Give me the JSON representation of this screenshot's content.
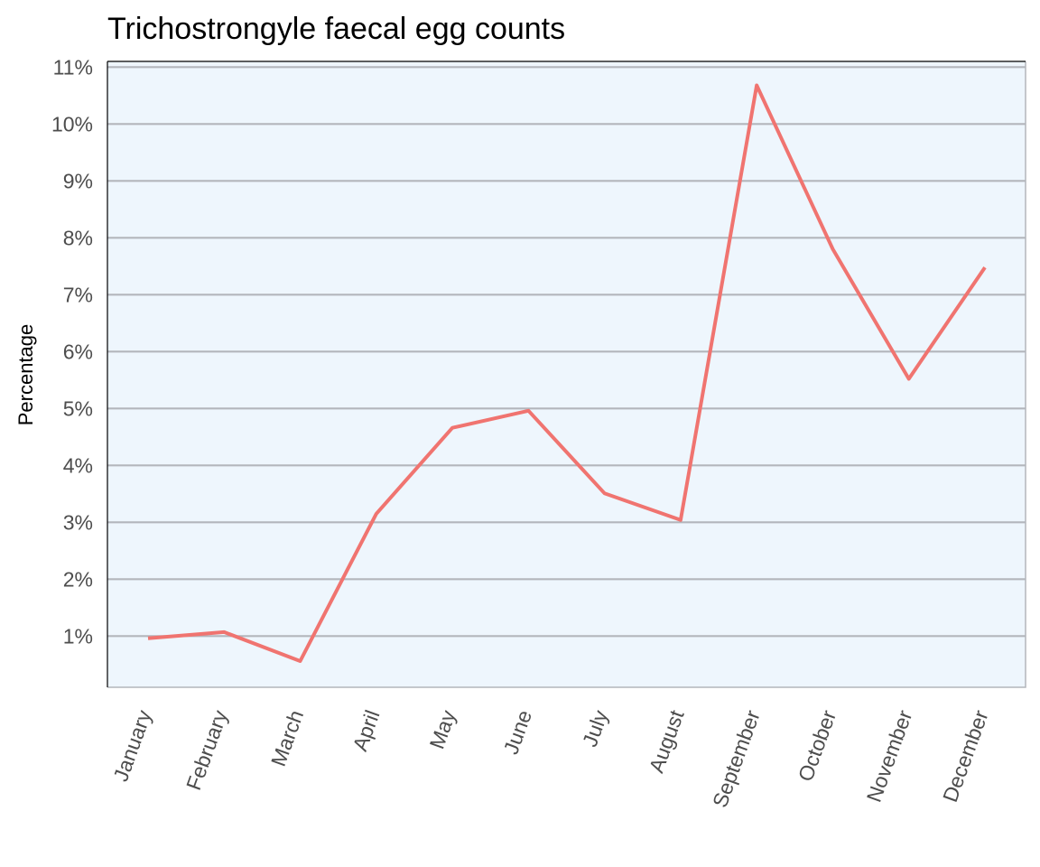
{
  "chart_data": {
    "type": "line",
    "title": "Trichostrongyle faecal egg counts",
    "xlabel": "",
    "ylabel": "Percentage",
    "categories": [
      "January",
      "February",
      "March",
      "April",
      "May",
      "June",
      "July",
      "August",
      "September",
      "October",
      "November",
      "December"
    ],
    "series": [
      {
        "values": [
          0.96,
          1.07,
          0.56,
          3.15,
          4.66,
          4.96,
          3.51,
          3.04,
          10.68,
          7.8,
          5.52,
          7.48
        ]
      }
    ],
    "y_ticks": [
      1,
      2,
      3,
      4,
      5,
      6,
      7,
      8,
      9,
      10,
      11
    ],
    "y_tick_labels": [
      "1%",
      "2%",
      "3%",
      "4%",
      "5%",
      "6%",
      "7%",
      "8%",
      "9%",
      "10%",
      "11%"
    ],
    "ylim": [
      0.1,
      11.1
    ],
    "grid": "horizontal",
    "legend": "none",
    "colors": {
      "line": "#f07470",
      "panel_background": "#eef6fd",
      "gridline": "#b3b6bc",
      "tick_text": "#4d4d4d"
    }
  }
}
